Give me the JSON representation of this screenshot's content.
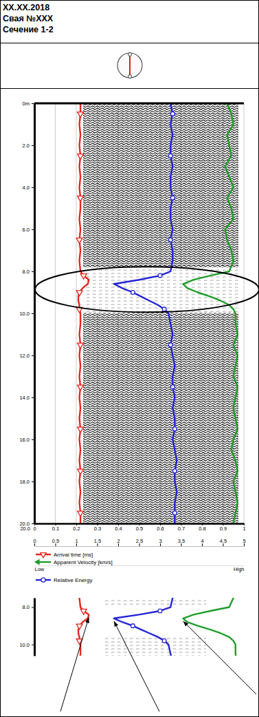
{
  "header": [
    "XX.XX.2018",
    "Свая №XXX",
    "Сечение 1-2"
  ],
  "chart_data": {
    "type": "line",
    "y": [
      0,
      0.5,
      1,
      1.5,
      2,
      2.5,
      3,
      3.5,
      4,
      4.5,
      5,
      5.5,
      6,
      6.5,
      7,
      7.5,
      8,
      8.2,
      8.4,
      8.6,
      8.8,
      9,
      9.2,
      9.4,
      9.6,
      9.8,
      10,
      10.5,
      11,
      11.5,
      12,
      12.5,
      13,
      13.5,
      14,
      14.5,
      15,
      15.5,
      16,
      16.5,
      17,
      17.5,
      18,
      18.5,
      19,
      19.5,
      20
    ],
    "ylim": [
      0,
      20
    ],
    "yticks": [
      {
        "value": 0,
        "label": "0m"
      },
      {
        "value": 2,
        "label": "2.0"
      },
      {
        "value": 4,
        "label": "4.0"
      },
      {
        "value": 6,
        "label": "6.0"
      },
      {
        "value": 8,
        "label": "8.0"
      },
      {
        "value": 10,
        "label": "10.0"
      },
      {
        "value": 12,
        "label": "12.0"
      },
      {
        "value": 14,
        "label": "14.0"
      },
      {
        "value": 16,
        "label": "16.0"
      },
      {
        "value": 18,
        "label": "18.0"
      },
      {
        "value": 20,
        "label": "20.0"
      }
    ],
    "xlim": [
      0,
      1
    ],
    "xticks": [
      0,
      0.1,
      0.2,
      0.3,
      0.4,
      0.5,
      0.6,
      0.7,
      0.8,
      0.9,
      1
    ],
    "x2lim": [
      0,
      5
    ],
    "x2ticks": [
      0,
      0.5,
      1,
      1.5,
      2,
      2.5,
      3,
      3.5,
      4,
      4.5,
      5
    ],
    "x3lim": [
      0,
      1
    ],
    "x3ticks": [
      {
        "value": 0,
        "label": "Low"
      },
      {
        "value": 1,
        "label": "High"
      }
    ],
    "grid": true,
    "annotations": [
      {
        "text": "20.0",
        "y": 20
      }
    ],
    "series": [
      {
        "name": "Arrival time [ms]",
        "color": "#e3261e",
        "marker": "triangle",
        "axis": "x",
        "values": [
          0.22,
          0.22,
          0.215,
          0.22,
          0.215,
          0.22,
          0.215,
          0.22,
          0.215,
          0.22,
          0.22,
          0.215,
          0.22,
          0.215,
          0.22,
          0.215,
          0.22,
          0.235,
          0.26,
          0.255,
          0.23,
          0.215,
          0.21,
          0.21,
          0.215,
          0.215,
          0.22,
          0.22,
          0.215,
          0.22,
          0.215,
          0.22,
          0.215,
          0.22,
          0.215,
          0.22,
          0.215,
          0.22,
          0.215,
          0.22,
          0.215,
          0.22,
          0.215,
          0.22,
          0.215,
          0.22,
          0.22
        ]
      },
      {
        "name": "Apparent Velocity [km/s]",
        "color": "#1f9e2a",
        "marker": "arrow",
        "axis": "x2",
        "values": [
          4.6,
          4.7,
          4.75,
          4.6,
          4.65,
          4.7,
          4.55,
          4.65,
          4.75,
          4.6,
          4.7,
          4.75,
          4.55,
          4.6,
          4.7,
          4.75,
          4.65,
          4.2,
          3.8,
          3.55,
          3.65,
          3.9,
          4.2,
          4.45,
          4.65,
          4.75,
          4.8,
          4.8,
          4.85,
          4.75,
          4.85,
          4.8,
          4.75,
          4.85,
          4.8,
          4.75,
          4.8,
          4.85,
          4.75,
          4.7,
          4.8,
          4.85,
          4.75,
          4.8,
          4.85,
          4.8,
          4.75
        ]
      },
      {
        "name": "Relative Energy",
        "color": "#2424d6",
        "marker": "circle",
        "axis": "x3",
        "values": [
          0.65,
          0.66,
          0.65,
          0.66,
          0.65,
          0.65,
          0.66,
          0.65,
          0.65,
          0.66,
          0.65,
          0.65,
          0.66,
          0.65,
          0.66,
          0.66,
          0.65,
          0.6,
          0.5,
          0.38,
          0.42,
          0.47,
          0.51,
          0.55,
          0.59,
          0.62,
          0.64,
          0.65,
          0.66,
          0.65,
          0.66,
          0.67,
          0.66,
          0.66,
          0.67,
          0.66,
          0.67,
          0.67,
          0.66,
          0.67,
          0.68,
          0.67,
          0.67,
          0.68,
          0.67,
          0.67,
          0.67
        ]
      }
    ],
    "inset": {
      "ylim": [
        7.5,
        10.6
      ],
      "yticks": [
        {
          "value": 8,
          "label": "8.0"
        },
        {
          "value": 10,
          "label": "10.0"
        }
      ]
    }
  }
}
